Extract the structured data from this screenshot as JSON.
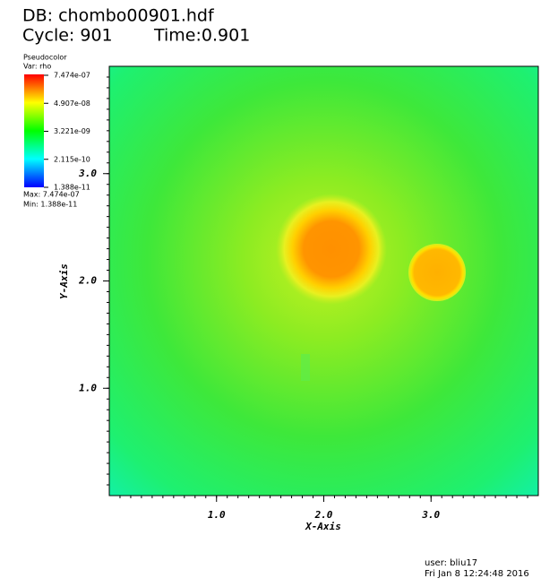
{
  "header": {
    "db": "DB: chombo00901.hdf",
    "cycle": "Cycle: 901",
    "time": "Time:0.901"
  },
  "legend": {
    "title": "Pseudocolor",
    "var": "Var: rho",
    "labels": [
      "7.474e-07",
      "4.907e-08",
      "3.221e-09",
      "2.115e-10",
      "1.388e-11"
    ],
    "max": "Max: 7.474e-07",
    "min": "Min: 1.388e-11"
  },
  "chart_data": {
    "type": "pseudocolor",
    "xlabel": "X-Axis",
    "ylabel": "Y-Axis",
    "xlim": [
      0,
      4
    ],
    "ylim": [
      0,
      4
    ],
    "xticks": [
      {
        "value": 1,
        "label": "1.0"
      },
      {
        "value": 2,
        "label": "2.0"
      },
      {
        "value": 3,
        "label": "3.0"
      }
    ],
    "yticks": [
      {
        "value": 1,
        "label": "1.0"
      },
      {
        "value": 2,
        "label": "2.0"
      },
      {
        "value": 3,
        "label": "3.0"
      }
    ]
  },
  "footer": {
    "user": "user: bliu17",
    "date": "Fri Jan  8 12:24:48 2016"
  }
}
